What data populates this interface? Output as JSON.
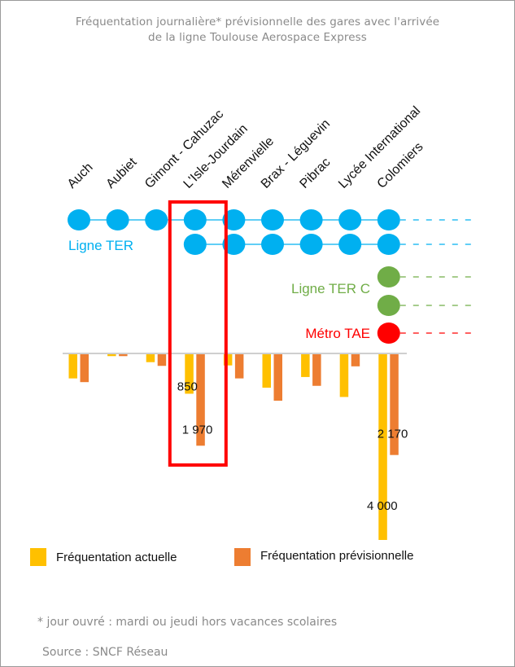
{
  "title_line1": "Fréquentation journalière* prévisionnelle des gares avec l'arrivée",
  "title_line2": "de la ligne Toulouse Aerospace Express",
  "colors": {
    "actuelle": "#FFC000",
    "previsionnelle": "#ED7D31",
    "ter": "#00B0F0",
    "ter_c": "#70AD47",
    "metro": "#FF0000",
    "highlight": "#FF0000",
    "grey_text": "#8a8a8a"
  },
  "line_labels": {
    "ter": "Ligne TER",
    "ter_c": "Ligne TER C",
    "metro": "Métro TAE"
  },
  "legend": {
    "actuelle": "Fréquentation actuelle",
    "previsionnelle": "Fréquentation prévisionnelle"
  },
  "footnote": "* jour ouvré : mardi ou jeudi hors vacances scolaires",
  "source": "Source : SNCF Réseau",
  "chart_data": {
    "type": "bar",
    "categories": [
      "Auch",
      "Aubiet",
      "Gimont - Cahuzac",
      "L'Isle-Jourdain",
      "Mérenvielle",
      "Brax - Léguevin",
      "Pibrac",
      "Lycée International",
      "Colomiers"
    ],
    "series": [
      {
        "name": "Fréquentation actuelle",
        "values": [
          520,
          40,
          170,
          850,
          240,
          720,
          490,
          920,
          4000
        ]
      },
      {
        "name": "Fréquentation prévisionnelle",
        "values": [
          600,
          40,
          250,
          1970,
          520,
          1000,
          680,
          260,
          2170
        ]
      }
    ],
    "data_labels": [
      {
        "category": "L'Isle-Jourdain",
        "series": "Fréquentation actuelle",
        "text": "850"
      },
      {
        "category": "L'Isle-Jourdain",
        "series": "Fréquentation prévisionnelle",
        "text": "1 970"
      },
      {
        "category": "Colomiers",
        "series": "Fréquentation prévisionnelle",
        "text": "2 170"
      },
      {
        "category": "Colomiers",
        "series": "Fréquentation actuelle",
        "text": "4 000"
      }
    ],
    "ylim": [
      0,
      4000
    ],
    "orientation": "downward",
    "highlight_category": "L'Isle-Jourdain",
    "stations": {
      "ter_row1": [
        true,
        true,
        true,
        true,
        true,
        true,
        true,
        true,
        true
      ],
      "ter_row2": [
        false,
        false,
        false,
        true,
        true,
        true,
        true,
        true,
        true
      ],
      "ter_c": [
        "Colomiers"
      ],
      "metro": [
        "Colomiers"
      ]
    }
  }
}
